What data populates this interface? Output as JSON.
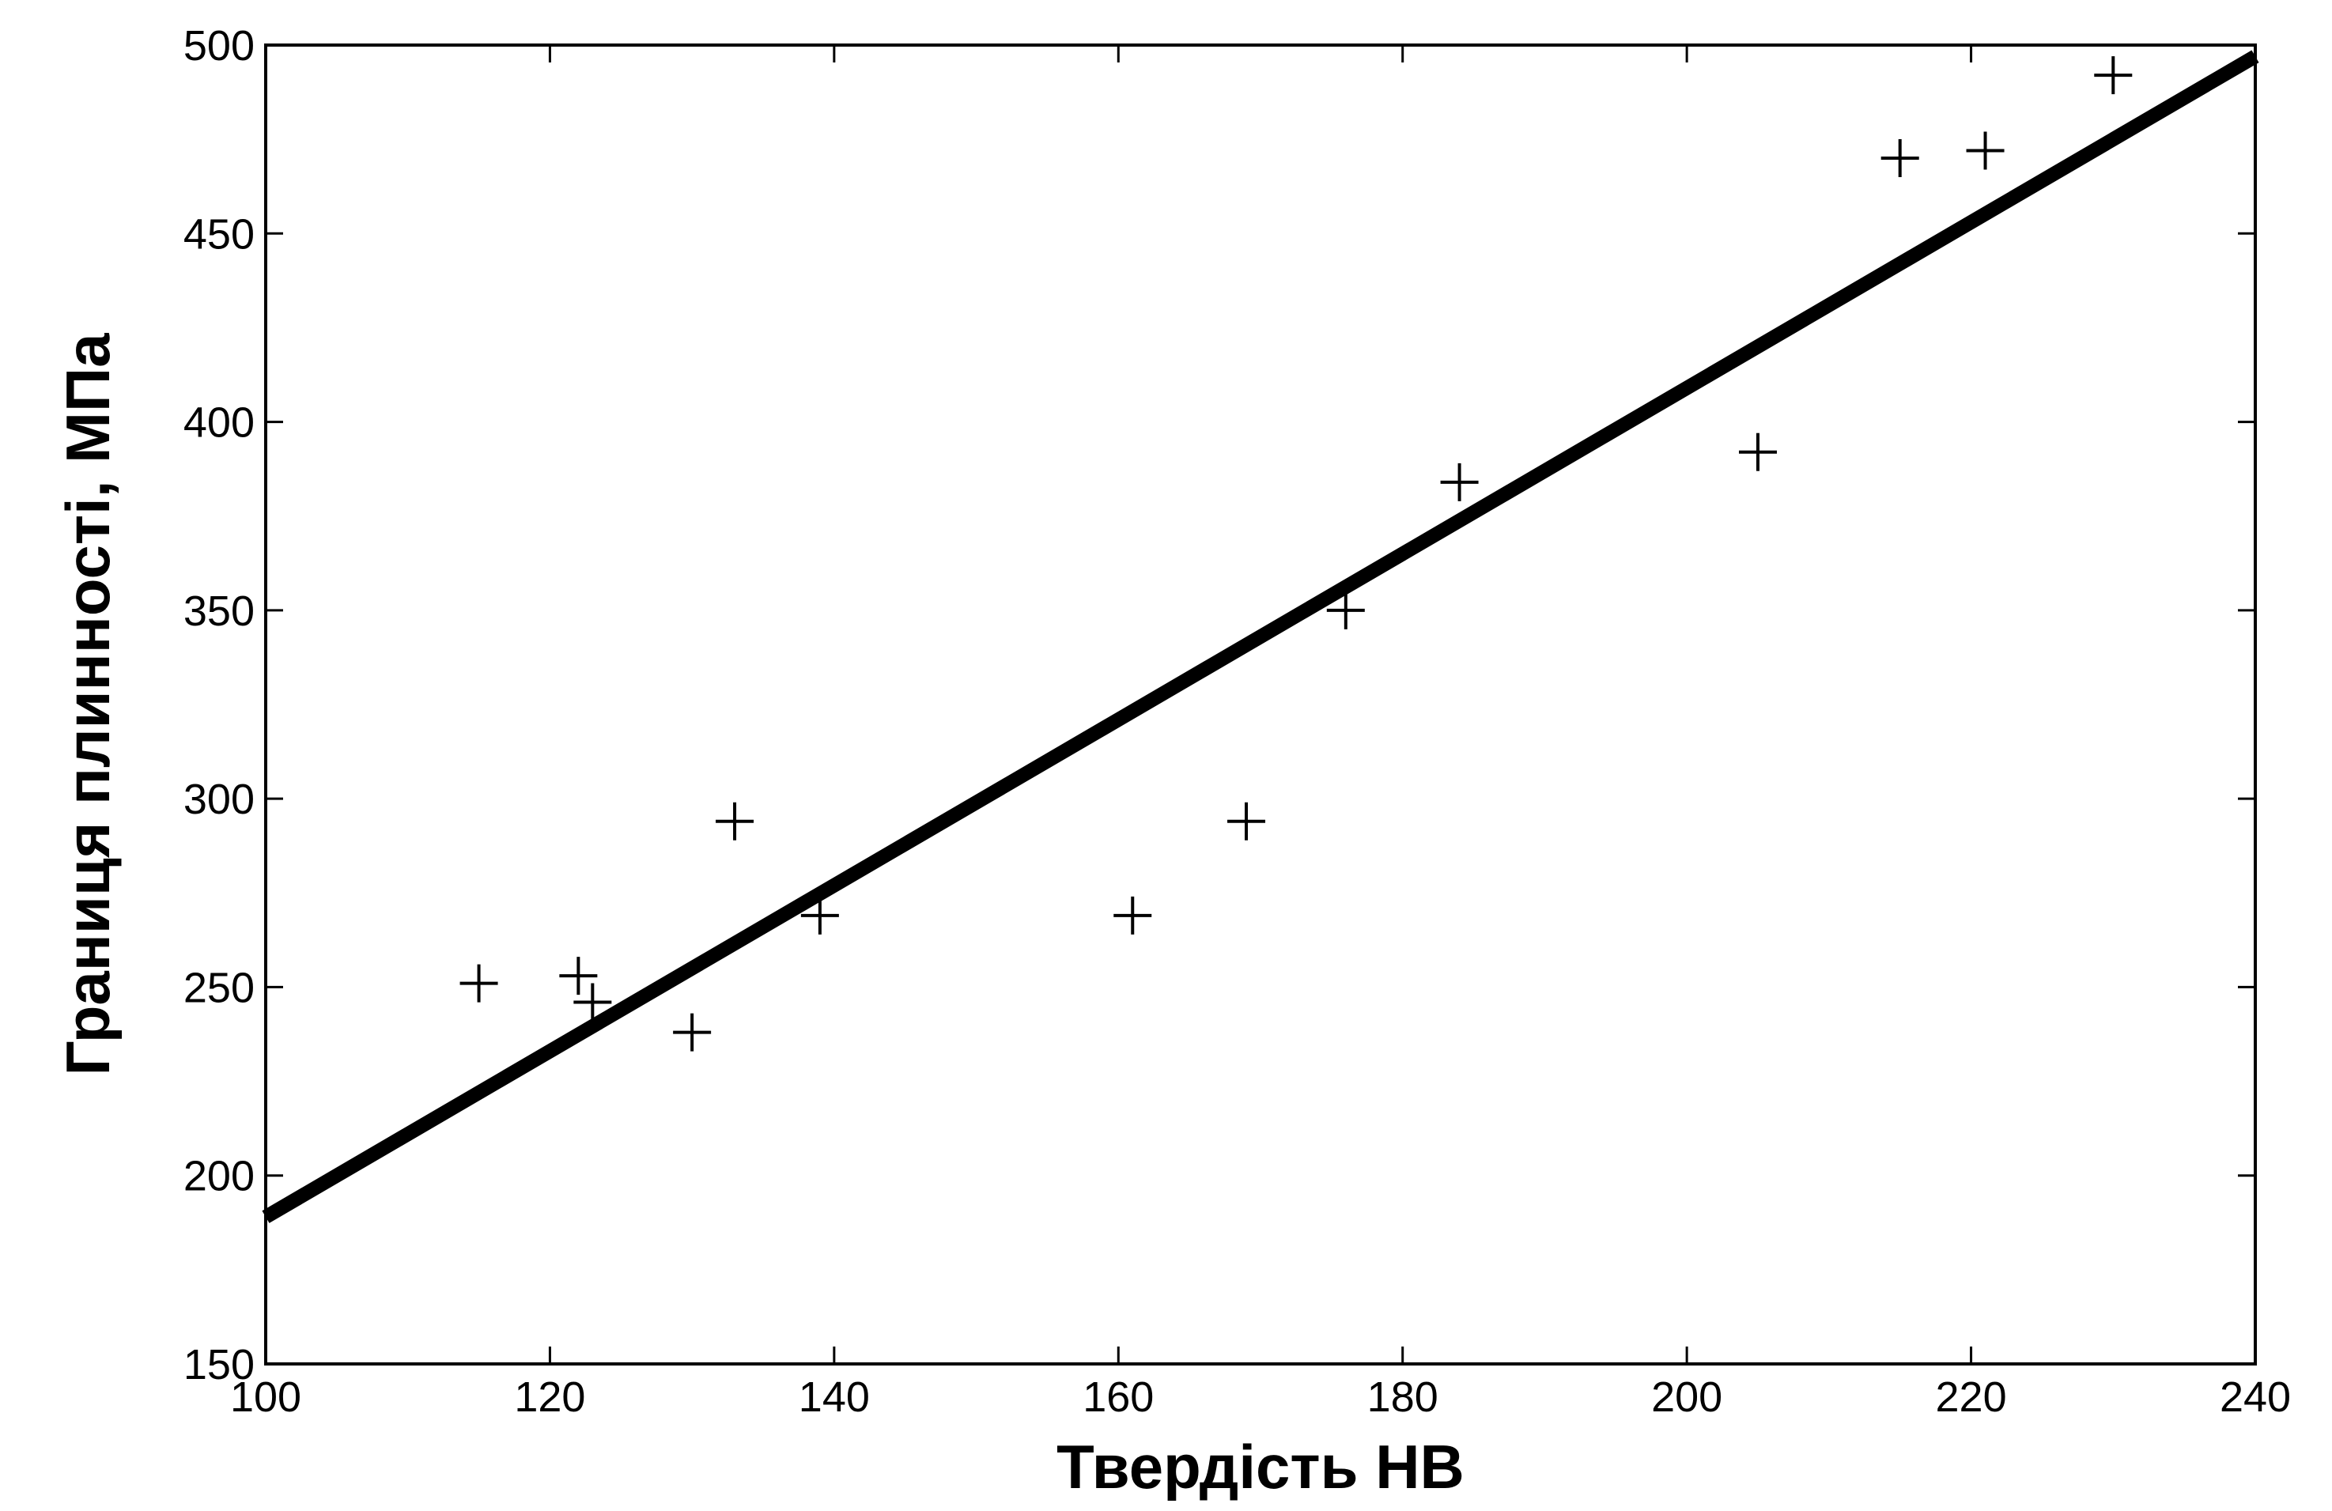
{
  "chart_data": {
    "type": "scatter",
    "title": "",
    "xlabel": "Твердість НВ",
    "ylabel": "Границя плинності, МПа",
    "xlim": [
      100,
      240
    ],
    "ylim": [
      150,
      500
    ],
    "xticks": [
      100,
      120,
      140,
      160,
      180,
      200,
      220,
      240
    ],
    "yticks": [
      150,
      200,
      250,
      300,
      350,
      400,
      450,
      500
    ],
    "grid": false,
    "legend": "none",
    "marker": "plus",
    "series": [
      {
        "kind": "scatter",
        "points": [
          {
            "x": 115,
            "y": 251
          },
          {
            "x": 122,
            "y": 253
          },
          {
            "x": 123,
            "y": 246
          },
          {
            "x": 130,
            "y": 238
          },
          {
            "x": 133,
            "y": 294
          },
          {
            "x": 139,
            "y": 269
          },
          {
            "x": 161,
            "y": 269
          },
          {
            "x": 169,
            "y": 294
          },
          {
            "x": 176,
            "y": 350
          },
          {
            "x": 184,
            "y": 384
          },
          {
            "x": 205,
            "y": 392
          },
          {
            "x": 215,
            "y": 470
          },
          {
            "x": 221,
            "y": 472
          },
          {
            "x": 230,
            "y": 492
          }
        ]
      },
      {
        "kind": "line",
        "points": [
          {
            "x": 100,
            "y": 189
          },
          {
            "x": 240,
            "y": 497
          }
        ]
      }
    ],
    "colors": {
      "marks": "#000000",
      "axes": "#000000",
      "background": "#ffffff"
    }
  }
}
